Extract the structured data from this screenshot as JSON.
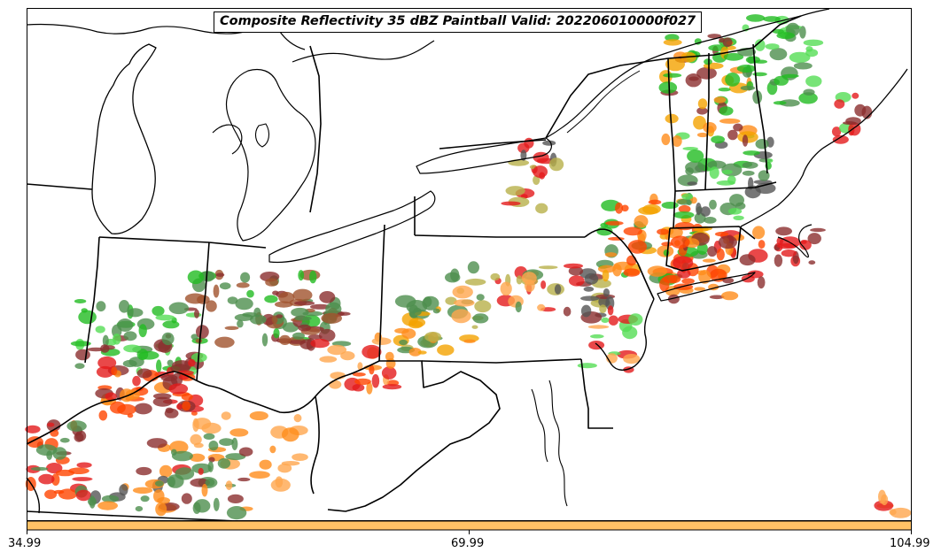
{
  "title": "Composite Reflectivity 35 dBZ Paintball Valid: 202206010000f027",
  "colorbar": {
    "color": "#ffc266",
    "ticks": [
      "34.99",
      "69.99",
      "104.99"
    ]
  },
  "colors": {
    "background": "#ffffff",
    "lines": "#000000",
    "member_colors": [
      "#e41a1c",
      "#ff4500",
      "#ff8c1a",
      "#ffa64d",
      "#f4a300",
      "#b8b04a",
      "#22bb22",
      "#55dd55",
      "#4d8f4d",
      "#8b2e2e",
      "#a0522d",
      "#555555"
    ]
  }
}
